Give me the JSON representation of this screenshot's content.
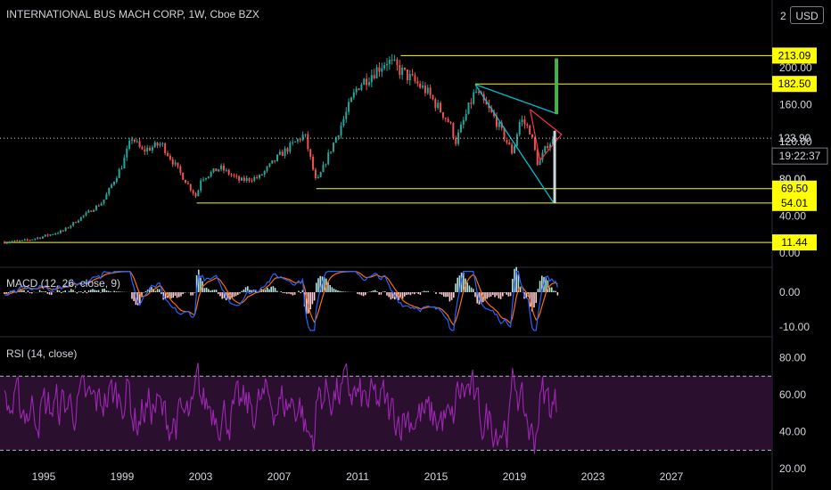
{
  "header": {
    "symbol_title": "INTERNATIONAL BUS MACH CORP, 1W, Cboe BZX",
    "currency_button": "USD",
    "currency_partial": "2"
  },
  "colors": {
    "background": "#000000",
    "text": "#d1d4dc",
    "candle_up": "#26a69a",
    "candle_down": "#ef5350",
    "level_line": "#ffff00",
    "wedge_line": "#00bcd4",
    "macd_line": "#2962ff",
    "signal_line": "#ff6d00",
    "rsi_line": "#9c27b0",
    "rsi_band": "#2a0f2f",
    "triangle": "#f23645",
    "bar_green": "#4caf50"
  },
  "chart_data": [
    {
      "type": "candlestick",
      "title": "INTERNATIONAL BUS MACH CORP, 1W, Cboe BZX",
      "x_ticks": [
        "1995",
        "1999",
        "2003",
        "2007",
        "2011",
        "2015",
        "2019",
        "2023",
        "2027"
      ],
      "y_ticks": [
        "0.00",
        "40.00",
        "80.00",
        "120.00",
        "160.00",
        "200.00"
      ],
      "ylim": [
        0,
        225
      ],
      "price_path": [
        [
          1993.0,
          12
        ],
        [
          1994.0,
          13
        ],
        [
          1995.0,
          18
        ],
        [
          1996.0,
          24
        ],
        [
          1997.0,
          40
        ],
        [
          1998.0,
          55
        ],
        [
          1999.0,
          95
        ],
        [
          1999.5,
          125
        ],
        [
          2000.0,
          110
        ],
        [
          2001.0,
          118
        ],
        [
          2002.0,
          85
        ],
        [
          2002.8,
          60
        ],
        [
          2003.0,
          80
        ],
        [
          2004.0,
          92
        ],
        [
          2005.0,
          78
        ],
        [
          2006.0,
          82
        ],
        [
          2007.0,
          105
        ],
        [
          2008.3,
          128
        ],
        [
          2008.9,
          75
        ],
        [
          2010.0,
          130
        ],
        [
          2011.0,
          180
        ],
        [
          2012.5,
          208
        ],
        [
          2013.3,
          195
        ],
        [
          2014.5,
          175
        ],
        [
          2015.7,
          140
        ],
        [
          2016.0,
          120
        ],
        [
          2017.0,
          175
        ],
        [
          2018.0,
          145
        ],
        [
          2018.9,
          108
        ],
        [
          2019.3,
          145
        ],
        [
          2019.8,
          132
        ],
        [
          2020.2,
          95
        ],
        [
          2020.7,
          118
        ],
        [
          2021.2,
          123.9
        ]
      ],
      "levels": [
        {
          "label": "213.09",
          "value": 213.09
        },
        {
          "label": "182.50",
          "value": 182.5
        },
        {
          "label": "69.50",
          "value": 69.5
        },
        {
          "label": "54.01",
          "value": 54.01
        },
        {
          "label": "11.44",
          "value": 11.44
        }
      ],
      "last_price": {
        "label": "123.90",
        "value": 123.9
      },
      "countdown": "19:22:37",
      "partial_tick": "80.00",
      "partial_tick_value": 80
    },
    {
      "type": "line",
      "title": "MACD (12, 26, close, 9)",
      "series": [
        {
          "name": "MACD",
          "color": "#2962ff"
        },
        {
          "name": "Signal",
          "color": "#ff6d00"
        }
      ],
      "y_ticks": [
        "0.00",
        "-10.00"
      ],
      "ylim": [
        -12,
        6
      ]
    },
    {
      "type": "line",
      "title": "RSI (14, close)",
      "y_ticks": [
        "80.00",
        "60.00",
        "40.00",
        "20.00"
      ],
      "ylim": [
        20,
        85
      ],
      "bands": [
        70,
        30
      ]
    }
  ]
}
